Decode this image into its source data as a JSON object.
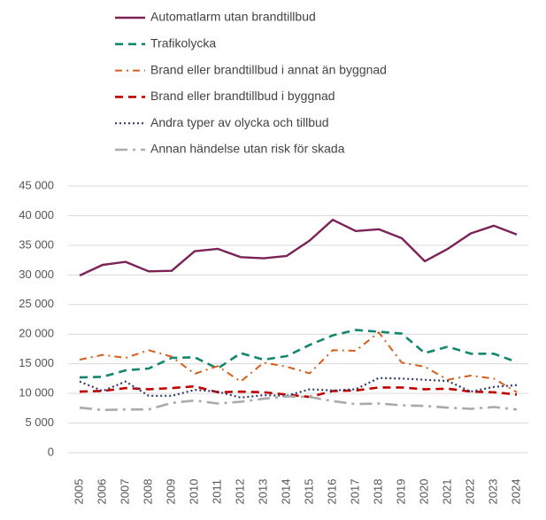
{
  "chart_data": {
    "type": "line",
    "categories": [
      "2005",
      "2006",
      "2007",
      "2008",
      "2009",
      "2010",
      "2011",
      "2012",
      "2013",
      "2014",
      "2015",
      "2016",
      "2017",
      "2018",
      "2019",
      "2020",
      "2021",
      "2022",
      "2023",
      "2024"
    ],
    "series": [
      {
        "name": "Automatlarm utan brandtillbud",
        "color": "#7b2257",
        "dash": "solid",
        "values": [
          29900,
          31700,
          32200,
          30600,
          30700,
          34000,
          34400,
          33000,
          32800,
          33200,
          35800,
          39300,
          37400,
          37700,
          36200,
          32300,
          34400,
          37000,
          38300,
          36800
        ]
      },
      {
        "name": "Trafikolycka",
        "color": "#13876d",
        "dash": "dashed",
        "values": [
          12700,
          12800,
          13900,
          14200,
          16000,
          16100,
          14200,
          16800,
          15700,
          16300,
          18200,
          19800,
          20700,
          20400,
          20100,
          16800,
          17900,
          16700,
          16700,
          15300
        ]
      },
      {
        "name": "Brand eller brandtillbud i annat än byggnad",
        "color": "#d55e1b",
        "dash": "dashdot",
        "values": [
          15700,
          16500,
          16000,
          17300,
          16200,
          13300,
          14600,
          12000,
          15200,
          14500,
          13400,
          17300,
          17200,
          20300,
          15200,
          14500,
          12300,
          13000,
          12500,
          10200
        ]
      },
      {
        "name": "Brand eller brandtillbud i byggnad",
        "color": "#c00000",
        "dash": "dashed",
        "values": [
          10300,
          10400,
          10900,
          10700,
          10900,
          11200,
          10200,
          10300,
          10200,
          9800,
          9400,
          10400,
          10500,
          11000,
          11000,
          10700,
          10800,
          10300,
          10200,
          9800
        ]
      },
      {
        "name": "Andra typer av olycka och tillbud",
        "color": "#2f3c6e",
        "dash": "dotted",
        "values": [
          12000,
          10400,
          12000,
          9600,
          9600,
          10600,
          10300,
          9300,
          9700,
          9600,
          10700,
          10500,
          10700,
          12600,
          12500,
          12300,
          12100,
          10300,
          11100,
          11400
        ]
      },
      {
        "name": "Annan händelse utan risk för skada",
        "color": "#aaaaaa",
        "dash": "longdashdot",
        "values": [
          7600,
          7200,
          7300,
          7300,
          8400,
          8800,
          8300,
          8600,
          9100,
          9500,
          9400,
          8700,
          8200,
          8300,
          8000,
          7900,
          7600,
          7400,
          7700,
          7300
        ]
      }
    ],
    "ylim": [
      0,
      45000
    ],
    "yticks": [
      0,
      {
        "value": 5000,
        "label": "5 000"
      },
      {
        "value": 10000,
        "label": "10 000"
      },
      {
        "value": 15000,
        "label": "15 000"
      },
      {
        "value": 20000,
        "label": "20 000"
      },
      {
        "value": 25000,
        "label": "25 000"
      },
      {
        "value": 30000,
        "label": "30 000"
      },
      {
        "value": 35000,
        "label": "35 000"
      },
      {
        "value": 40000,
        "label": "40 000"
      },
      {
        "value": 45000,
        "label": "45 000"
      }
    ],
    "grid": true,
    "legend": "top"
  }
}
